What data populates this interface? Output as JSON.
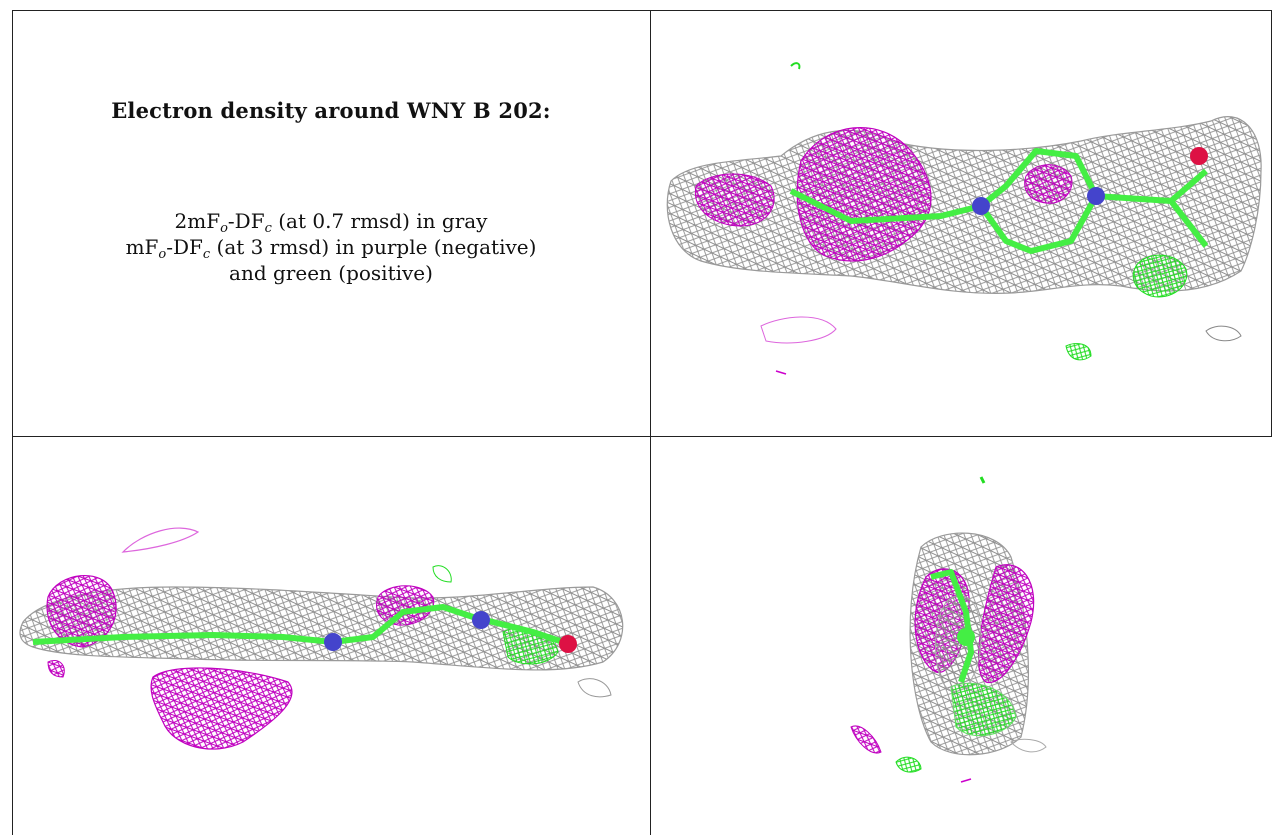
{
  "caption": {
    "title": "Electron density around WNY B 202:",
    "line1": {
      "prefix": "2mF",
      "sub1": "o",
      "mid": "-DF",
      "sub2": "c",
      "suffix": " (at 0.7 rmsd) in gray"
    },
    "line2": {
      "prefix": "mF",
      "sub1": "o",
      "mid": "-DF",
      "sub2": "c",
      "suffix": " (at 3 rmsd) in purple (negative)"
    },
    "line3": "and green (positive)"
  },
  "colors": {
    "map_2fofc": "#9a9a9a",
    "map_negative": "#cc00cc",
    "map_positive": "#22dd22",
    "carbon": "#44ee44",
    "nitrogen": "#4444cc",
    "oxygen": "#dd1144",
    "border": "#222222"
  },
  "panels": [
    {
      "id": "view-top-right",
      "icon": "density-map-view-1"
    },
    {
      "id": "view-bottom-left",
      "icon": "density-map-view-2"
    },
    {
      "id": "view-bottom-right",
      "icon": "density-map-view-3"
    }
  ]
}
